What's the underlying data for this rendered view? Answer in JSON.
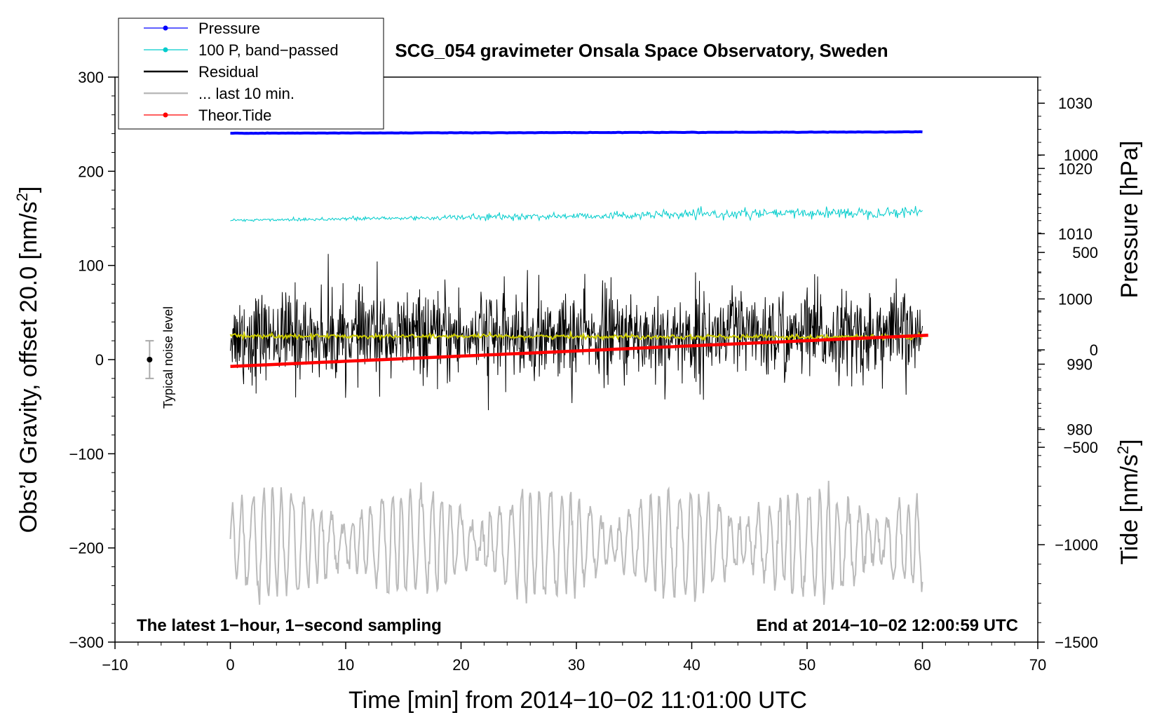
{
  "chart_data": {
    "type": "line",
    "title": "SCG_054 gravimeter Onsala Space Observatory, Sweden",
    "xlabel": "Time [min] from 2014−10−02 11:01:00 UTC",
    "ylabel_left_main": "Obs’d Gravity, offset 20.0 [nm/s",
    "ylabel_left_sup": "2",
    "ylabel_left_close": "]",
    "ylabel_right_pressure": "Pressure [hPa]",
    "ylabel_right_tide_main": "Tide [nm/s",
    "ylabel_right_tide_sup": "2",
    "ylabel_right_tide_close": "]",
    "xlim": [
      -10,
      70
    ],
    "ylim": [
      -300,
      300
    ],
    "pressure_ylim": [
      1034,
      947.4
    ],
    "tide_ylim": [
      -1500,
      1400
    ],
    "x_ticks": [
      "−10",
      "0",
      "10",
      "20",
      "30",
      "40",
      "50",
      "60",
      "70"
    ],
    "x_tick_values": [
      -10,
      0,
      10,
      20,
      30,
      40,
      50,
      60,
      70
    ],
    "y_ticks": [
      "300",
      "200",
      "100",
      "0",
      "−100",
      "−200",
      "−300"
    ],
    "y_tick_values": [
      300,
      200,
      100,
      0,
      -100,
      -200,
      -300
    ],
    "pressure_ticks": [
      "1030",
      "1020",
      "1010",
      "1000",
      "990",
      "980"
    ],
    "pressure_tick_values": [
      1030,
      1020,
      1010,
      1000,
      990,
      980
    ],
    "tide_ticks": [
      "1000",
      "500",
      "0",
      "−500",
      "−1000",
      "−1500"
    ],
    "tide_tick_values": [
      1000,
      500,
      0,
      -500,
      -1000,
      -1500
    ],
    "legend": [
      {
        "label": "Pressure",
        "color": "#0000ff",
        "marker": true
      },
      {
        "label": "100 P, band−passed",
        "color": "#00cccc",
        "marker": true
      },
      {
        "label": "Residual",
        "color": "#000000",
        "marker": false
      },
      {
        "label": "... last 10 min.",
        "color": "#bbbbbb",
        "marker": false
      },
      {
        "label": "Theor.Tide",
        "color": "#ff0000",
        "marker": true
      }
    ],
    "legend_position": "top-left",
    "annotations": {
      "bottom_left": "The latest 1−hour, 1−second sampling",
      "bottom_right": "End at 2014−10−02 12:00:59 UTC",
      "noise_label": "Typical noise level"
    },
    "noise_bar": {
      "x": -7,
      "center": 0,
      "half_range": 20
    },
    "series": [
      {
        "name": "Pressure",
        "color": "#0000ff",
        "axis": "pressure",
        "x_range": [
          0,
          60
        ],
        "start": 1025.4,
        "end": 1025.6,
        "amplitude": 0.05
      },
      {
        "name": "100 P, band−passed",
        "color": "#00cccc",
        "axis": "left",
        "x_range": [
          0,
          60
        ],
        "start": 148,
        "end": 157,
        "amplitude": 6
      },
      {
        "name": "Residual",
        "color": "#000000",
        "axis": "left",
        "x_range": [
          0,
          60
        ],
        "center": 25,
        "amplitude": 50,
        "max": 132,
        "min": -83
      },
      {
        "name": "Residual mean",
        "color": "#cccc00",
        "axis": "left",
        "x_range": [
          0,
          60
        ],
        "start": 25,
        "end": 24,
        "amplitude": 2
      },
      {
        "name": "... last 10 min.",
        "color": "#bbbbbb",
        "axis": "left",
        "x_range": [
          0,
          60
        ],
        "center": -195,
        "amplitude": 55,
        "max": -108,
        "min": -270
      },
      {
        "name": "Theor.Tide",
        "color": "#ff0000",
        "axis": "tide",
        "x_range": [
          0,
          60.5
        ],
        "start": -85,
        "end": 75
      }
    ],
    "colors": {
      "axis": "#000000",
      "noise_bar": "#aaaaaa"
    }
  }
}
